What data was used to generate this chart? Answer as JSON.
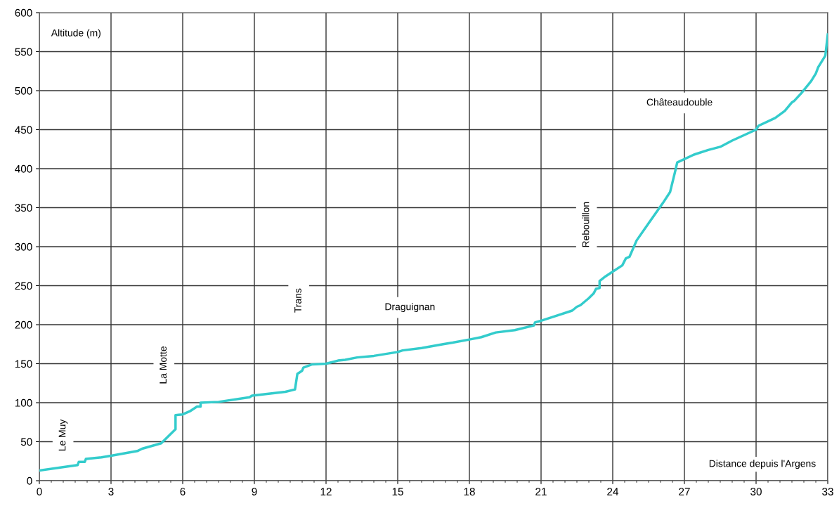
{
  "chart_data": {
    "type": "line",
    "xlabel": "Distance depuis l'Argens",
    "ylabel": "Altitude (m)",
    "x": [
      0,
      1.6,
      1.65,
      1.9,
      1.95,
      2.6,
      3,
      4.1,
      4.3,
      5.1,
      5.7,
      5.7,
      6,
      6.3,
      6.6,
      6.75,
      6.75,
      7.5,
      8.8,
      8.9,
      10.3,
      10.7,
      10.8,
      11,
      11.05,
      11.4,
      12,
      12.5,
      12.8,
      13.3,
      14,
      15,
      15.2,
      16,
      16.9,
      17.3,
      18,
      18.5,
      19.1,
      19.9,
      20.7,
      20.75,
      21,
      21.5,
      22.3,
      22.5,
      22.65,
      23,
      23.2,
      23.3,
      23.45,
      23.45,
      23.7,
      24,
      24.4,
      24.55,
      24.7,
      25,
      25.5,
      26.1,
      26.4,
      26.6,
      26.7,
      27.4,
      28,
      28.5,
      29,
      30,
      30.1,
      30.8,
      31.2,
      31.5,
      31.6,
      31.9,
      32.3,
      32.5,
      32.6,
      32.9,
      33
    ],
    "series": [
      {
        "color": "#33cccc",
        "values": [
          13,
          20,
          24,
          24,
          28,
          30,
          32,
          38,
          41,
          48,
          66,
          84,
          85,
          89,
          95,
          95,
          100,
          101,
          107,
          109,
          114,
          117,
          137,
          141,
          145,
          149,
          150,
          154,
          155,
          158,
          160,
          165,
          167,
          170,
          175,
          177,
          181,
          184,
          190,
          193,
          199,
          203,
          205,
          210,
          218,
          223,
          225,
          234,
          240,
          246,
          247,
          256,
          262,
          268,
          276,
          285,
          287,
          308,
          330,
          356,
          370,
          395,
          408,
          418,
          424,
          428,
          436,
          450,
          455,
          465,
          474,
          485,
          487,
          497,
          512,
          522,
          530,
          545,
          572
        ]
      }
    ],
    "xlim": [
      0,
      33
    ],
    "xticks": [
      0,
      3,
      6,
      9,
      12,
      15,
      18,
      21,
      24,
      27,
      30,
      33
    ],
    "ylim": [
      0,
      600
    ],
    "yticks": [
      0,
      50,
      100,
      150,
      200,
      250,
      300,
      350,
      400,
      450,
      500,
      550,
      600
    ],
    "grid": true,
    "marker": "none",
    "line_style": "solid",
    "annotations": [
      "Le Muy",
      "La Motte",
      "Trans",
      "Draguignan",
      "Rebouillon",
      "Châteaudouble"
    ]
  }
}
